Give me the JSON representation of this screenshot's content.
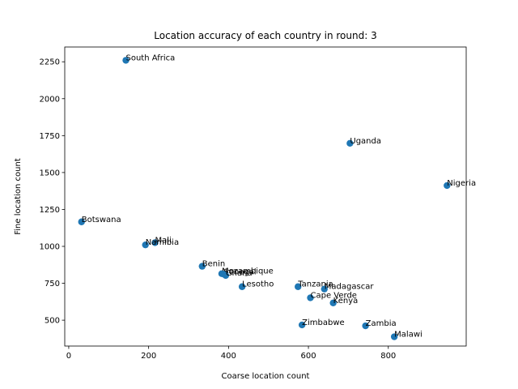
{
  "chart_data": {
    "type": "scatter",
    "title": "Location accuracy of each country in round: 3",
    "xlabel": "Coarse location count",
    "ylabel": "Fine location count",
    "xlim": [
      -10,
      995
    ],
    "ylim": [
      325,
      2350
    ],
    "xticks": [
      0,
      200,
      400,
      600,
      800
    ],
    "yticks": [
      500,
      750,
      1000,
      1250,
      1500,
      1750,
      2000,
      2250
    ],
    "grid": false,
    "color": "#1f77b4",
    "points": [
      {
        "label": "South Africa",
        "x": 143,
        "y": 2260
      },
      {
        "label": "Uganda",
        "x": 704,
        "y": 1698
      },
      {
        "label": "Nigeria",
        "x": 947,
        "y": 1412
      },
      {
        "label": "Botswana",
        "x": 32,
        "y": 1166
      },
      {
        "label": "Mali",
        "x": 216,
        "y": 1025
      },
      {
        "label": "Namibia",
        "x": 192,
        "y": 1010
      },
      {
        "label": "Benin",
        "x": 334,
        "y": 865
      },
      {
        "label": "Mozambique",
        "x": 383,
        "y": 815
      },
      {
        "label": "Senegal",
        "x": 388,
        "y": 812
      },
      {
        "label": "Ghana",
        "x": 393,
        "y": 803
      },
      {
        "label": "Lesotho",
        "x": 434,
        "y": 727
      },
      {
        "label": "Tanzania",
        "x": 574,
        "y": 727
      },
      {
        "label": "Madagascar",
        "x": 640,
        "y": 711
      },
      {
        "label": "Cape Verde",
        "x": 605,
        "y": 652
      },
      {
        "label": "Kenya",
        "x": 662,
        "y": 617
      },
      {
        "label": "Zimbabwe",
        "x": 584,
        "y": 468
      },
      {
        "label": "Zambia",
        "x": 743,
        "y": 462
      },
      {
        "label": "Malawi",
        "x": 815,
        "y": 388
      }
    ]
  }
}
